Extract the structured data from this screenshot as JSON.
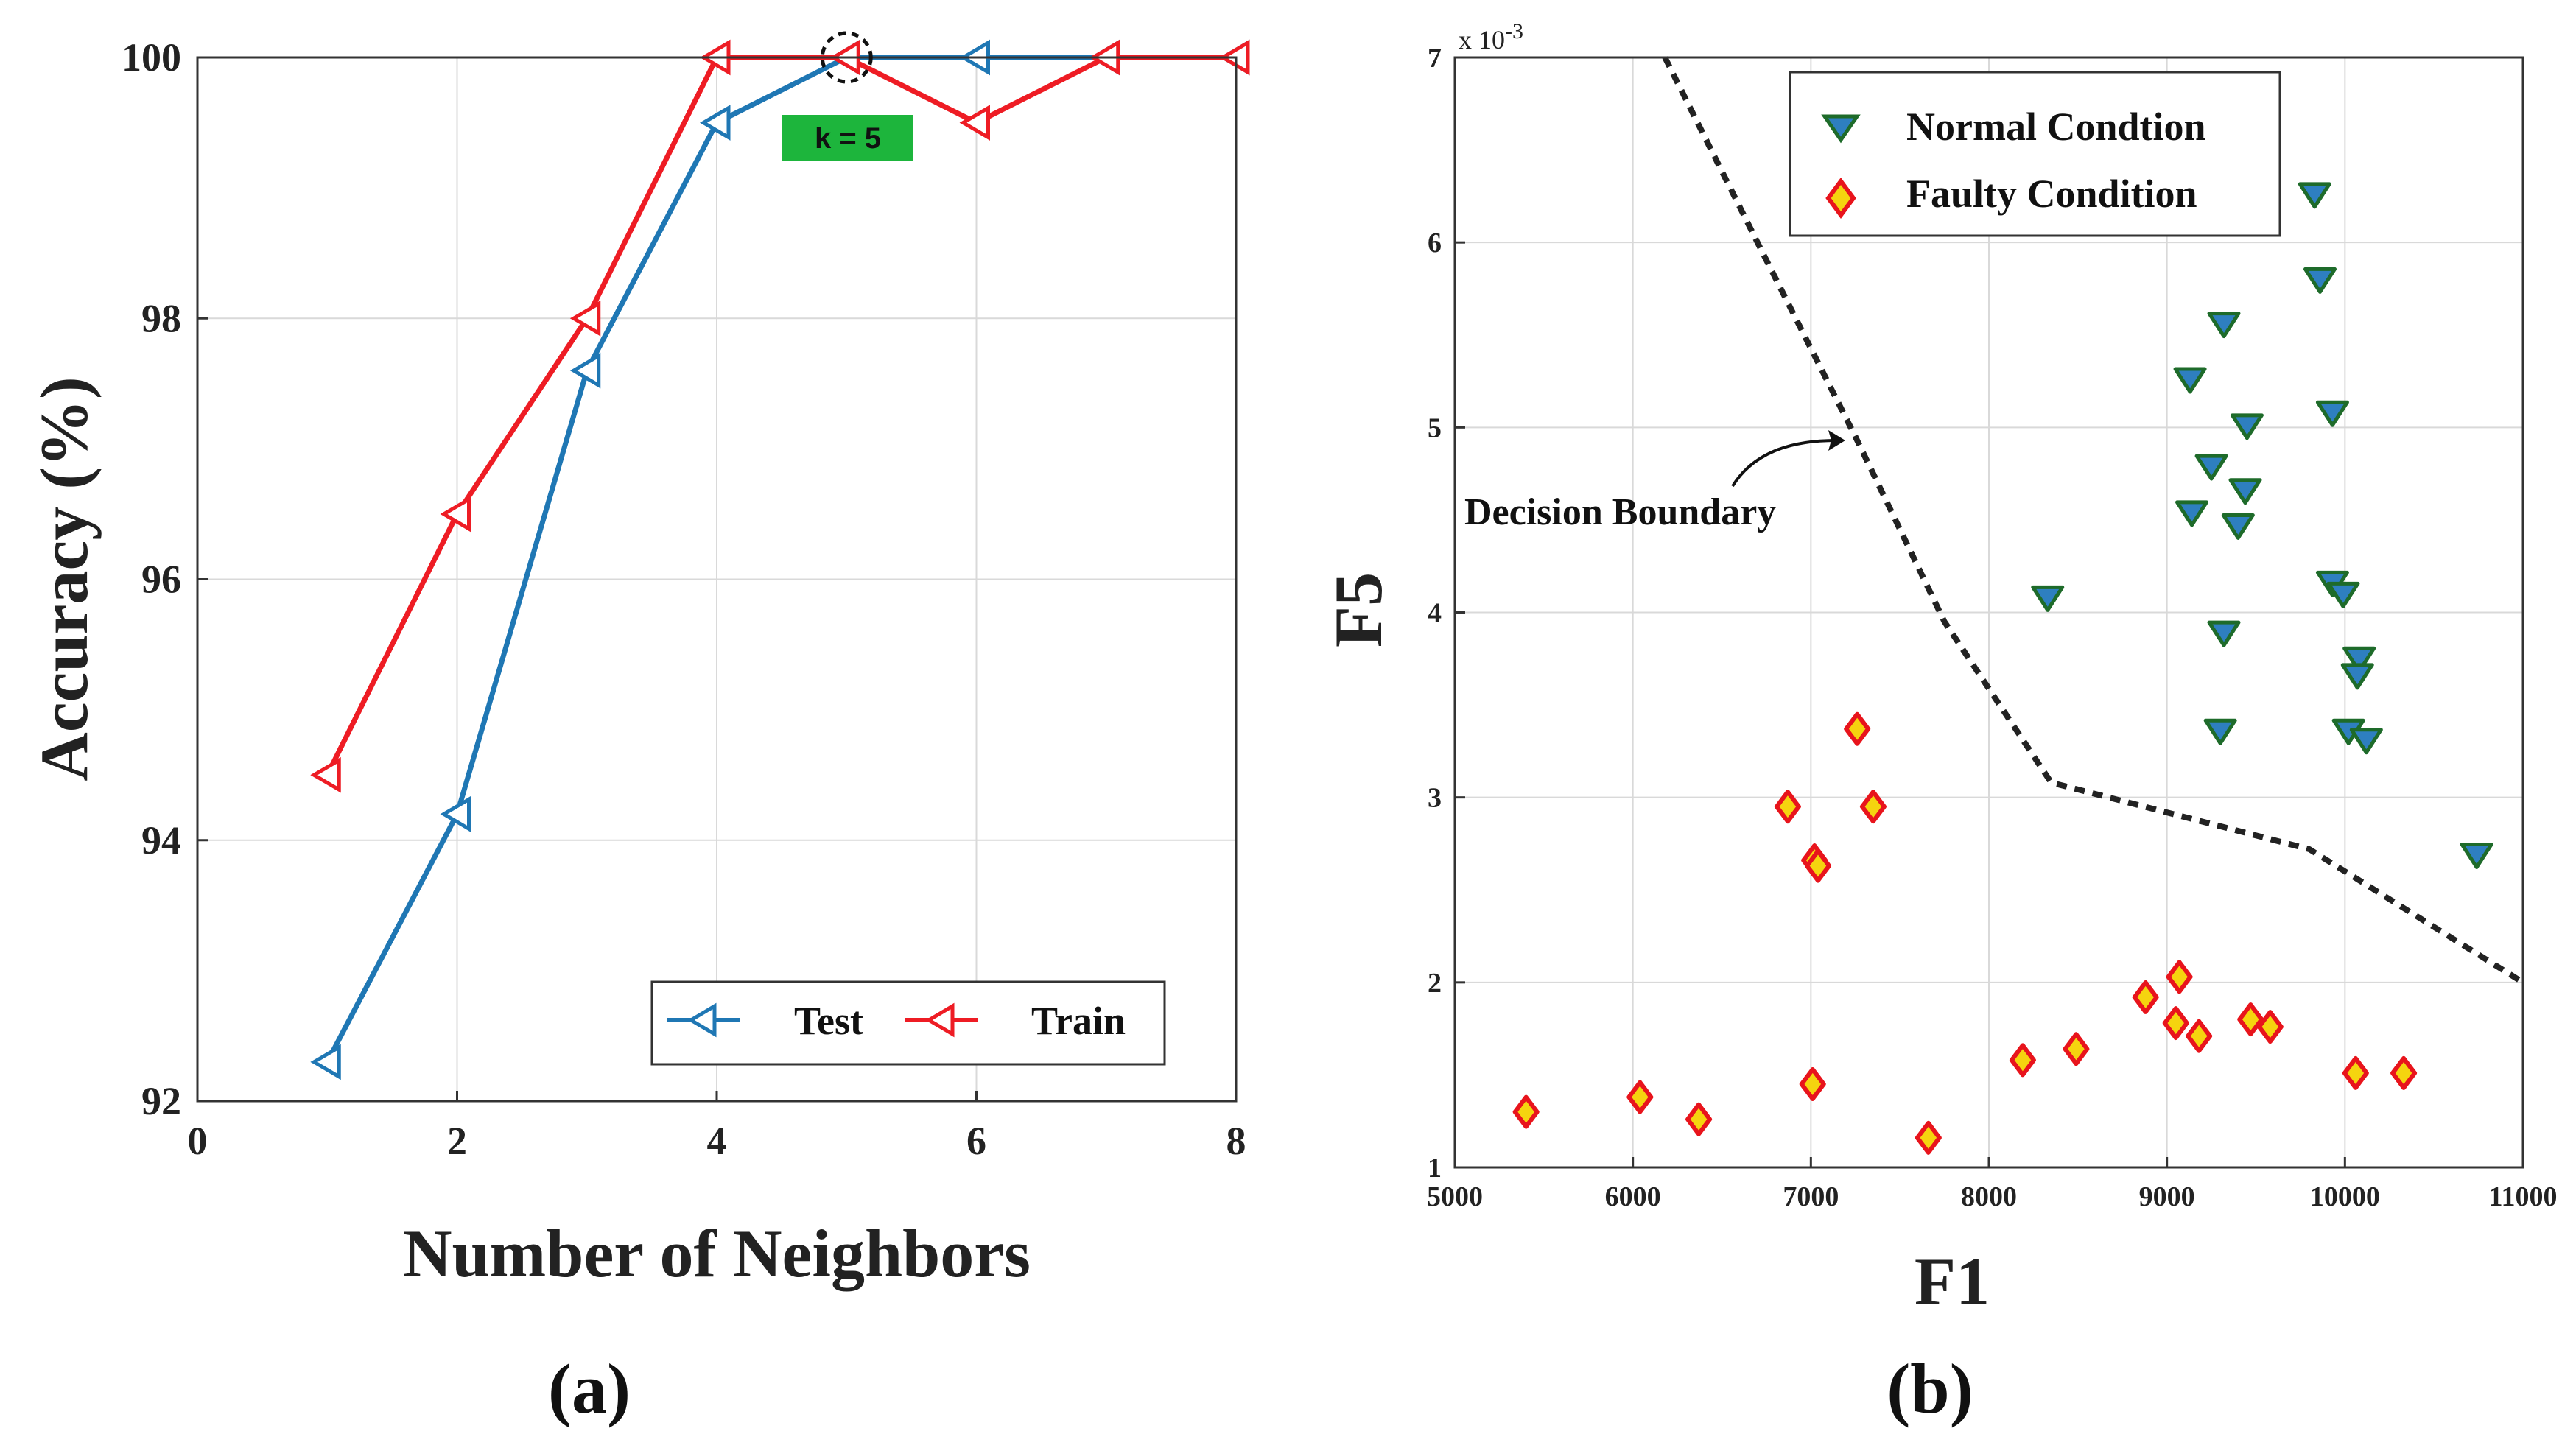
{
  "colors": {
    "test": "#1f77b4",
    "train": "#ee1c24",
    "normal_fill": "#2e7fc0",
    "normal_edge": "#1e6b2a",
    "faulty_fill": "#f5d40f",
    "faulty_edge": "#e8141c",
    "k_badge": "#1db53c"
  },
  "panel_a": {
    "panel_label": "(a)",
    "k_label": "k = 5",
    "legend": {
      "test": "Test",
      "train": "Train"
    }
  },
  "panel_b": {
    "panel_label": "(b)",
    "exponent_label": "x 10",
    "exponent_power": "-3",
    "boundary_label": "Decision Boundary",
    "legend": {
      "normal": "Normal Condtion",
      "faulty": "Faulty Condition"
    }
  },
  "chart_data": [
    {
      "type": "line",
      "xlabel": "Number of Neighbors",
      "ylabel": "Accuracy (%)",
      "xlim": [
        0,
        8
      ],
      "ylim": [
        92,
        100
      ],
      "xticks": [
        0,
        2,
        4,
        6,
        8
      ],
      "yticks": [
        92,
        94,
        96,
        98,
        100
      ],
      "grid": true,
      "legend_position": "bottom-right",
      "series": [
        {
          "name": "Test",
          "x": [
            1,
            2,
            3,
            4,
            5,
            6,
            7,
            8
          ],
          "values": [
            92.3,
            94.2,
            97.6,
            99.5,
            100,
            100,
            100,
            100
          ]
        },
        {
          "name": "Train",
          "x": [
            1,
            2,
            3,
            4,
            5,
            6,
            7,
            8
          ],
          "values": [
            94.5,
            96.5,
            98.0,
            100,
            100,
            99.5,
            100,
            100
          ]
        }
      ],
      "highlight": {
        "x": 5,
        "y": 100,
        "label": "k = 5"
      }
    },
    {
      "type": "scatter",
      "xlabel": "F1",
      "ylabel": "F5",
      "xlim": [
        5000,
        11000
      ],
      "ylim": [
        0.001,
        0.007
      ],
      "xticks": [
        5000,
        6000,
        7000,
        8000,
        9000,
        10000,
        11000
      ],
      "yticks": [
        1,
        2,
        3,
        4,
        5,
        6,
        7
      ],
      "y_scale_label": "x 10^-3",
      "grid": true,
      "legend_position": "top-right",
      "series": [
        {
          "name": "Normal Condtion",
          "points": [
            [
              8330,
              4.08
            ],
            [
              9130,
              5.26
            ],
            [
              9320,
              5.56
            ],
            [
              9250,
              4.79
            ],
            [
              9140,
              4.54
            ],
            [
              9450,
              5.01
            ],
            [
              9440,
              4.66
            ],
            [
              9400,
              4.47
            ],
            [
              9320,
              3.89
            ],
            [
              9300,
              3.36
            ],
            [
              9830,
              6.26
            ],
            [
              9860,
              5.8
            ],
            [
              9930,
              5.08
            ],
            [
              9930,
              4.16
            ],
            [
              9990,
              4.1
            ],
            [
              10080,
              3.75
            ],
            [
              10070,
              3.66
            ],
            [
              10020,
              3.36
            ],
            [
              10120,
              3.31
            ],
            [
              10740,
              2.69
            ]
          ]
        },
        {
          "name": "Faulty Condition",
          "points": [
            [
              5400,
              1.3
            ],
            [
              6040,
              1.38
            ],
            [
              6370,
              1.26
            ],
            [
              6870,
              2.95
            ],
            [
              7020,
              2.66
            ],
            [
              7040,
              2.63
            ],
            [
              7260,
              3.37
            ],
            [
              7350,
              2.95
            ],
            [
              7010,
              1.45
            ],
            [
              7660,
              1.16
            ],
            [
              8190,
              1.58
            ],
            [
              8490,
              1.64
            ],
            [
              8880,
              1.92
            ],
            [
              9050,
              1.78
            ],
            [
              9070,
              2.03
            ],
            [
              9180,
              1.71
            ],
            [
              9470,
              1.8
            ],
            [
              9580,
              1.76
            ],
            [
              10060,
              1.51
            ],
            [
              10330,
              1.51
            ]
          ]
        }
      ],
      "decision_boundary": [
        [
          6180,
          7.0
        ],
        [
          6700,
          6.0
        ],
        [
          7250,
          4.95
        ],
        [
          7750,
          3.95
        ],
        [
          8350,
          3.08
        ],
        [
          9800,
          2.72
        ],
        [
          11000,
          2.0
        ]
      ],
      "annotation": {
        "text": "Decision Boundary",
        "target": [
          7200,
          4.95
        ]
      }
    }
  ]
}
